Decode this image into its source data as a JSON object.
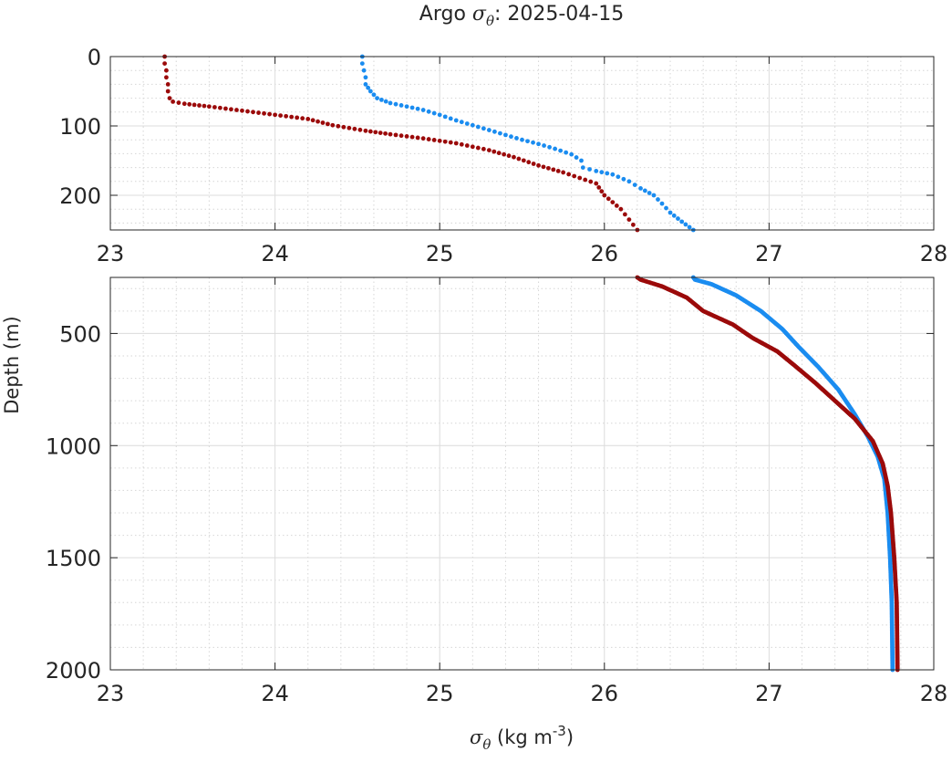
{
  "chart_data": {
    "type": "scatter",
    "title": {
      "prefix": "Argo ",
      "symbol": "σ",
      "subscript": "θ",
      "suffix": ": 2025-04-15"
    },
    "xlabel": {
      "symbol": "σ",
      "subscript": "θ",
      "unit_prefix": " (kg m",
      "superscript": "-3",
      "unit_suffix": ")"
    },
    "ylabel": "Depth (m)",
    "grid": true,
    "minor_grid": true,
    "panels": [
      {
        "name": "upper",
        "xlim": [
          23,
          28
        ],
        "ylim": [
          0,
          250
        ],
        "y_reversed": true,
        "xticks": [
          "23",
          "24",
          "25",
          "26",
          "27",
          "28"
        ],
        "yticks": [
          {
            "v": 0,
            "label": "0"
          },
          {
            "v": 100,
            "label": "100"
          },
          {
            "v": 200,
            "label": "200"
          }
        ]
      },
      {
        "name": "lower",
        "xlim": [
          23,
          28
        ],
        "ylim": [
          250,
          2000
        ],
        "y_reversed": true,
        "xticks": [
          "23",
          "24",
          "25",
          "26",
          "27",
          "28"
        ],
        "yticks": [
          {
            "v": 500,
            "label": "500"
          },
          {
            "v": 1000,
            "label": "1000"
          },
          {
            "v": 1500,
            "label": "1500"
          },
          {
            "v": 2000,
            "label": "2000"
          }
        ]
      }
    ],
    "series": [
      {
        "color": "#1a8cf0",
        "points": [
          [
            24.53,
            0
          ],
          [
            24.53,
            10
          ],
          [
            24.54,
            20
          ],
          [
            24.55,
            30
          ],
          [
            24.55,
            40
          ],
          [
            24.58,
            50
          ],
          [
            24.62,
            60
          ],
          [
            24.7,
            67
          ],
          [
            24.8,
            72
          ],
          [
            24.9,
            77
          ],
          [
            25.0,
            84
          ],
          [
            25.1,
            92
          ],
          [
            25.2,
            99
          ],
          [
            25.3,
            106
          ],
          [
            25.4,
            113
          ],
          [
            25.5,
            120
          ],
          [
            25.6,
            126
          ],
          [
            25.7,
            133
          ],
          [
            25.8,
            141
          ],
          [
            25.86,
            150
          ],
          [
            25.87,
            160
          ],
          [
            25.95,
            165
          ],
          [
            26.05,
            170
          ],
          [
            26.15,
            180
          ],
          [
            26.22,
            190
          ],
          [
            26.3,
            200
          ],
          [
            26.35,
            212
          ],
          [
            26.4,
            225
          ],
          [
            26.47,
            238
          ],
          [
            26.54,
            250
          ],
          [
            26.55,
            260
          ],
          [
            26.65,
            280
          ],
          [
            26.8,
            330
          ],
          [
            26.95,
            400
          ],
          [
            27.08,
            480
          ],
          [
            27.18,
            560
          ],
          [
            27.3,
            650
          ],
          [
            27.42,
            750
          ],
          [
            27.52,
            860
          ],
          [
            27.6,
            960
          ],
          [
            27.66,
            1050
          ],
          [
            27.7,
            1150
          ],
          [
            27.72,
            1300
          ],
          [
            27.735,
            1500
          ],
          [
            27.745,
            1700
          ],
          [
            27.75,
            2000
          ]
        ]
      },
      {
        "color": "#9b0a0a",
        "points": [
          [
            23.33,
            0
          ],
          [
            23.33,
            10
          ],
          [
            23.34,
            20
          ],
          [
            23.34,
            30
          ],
          [
            23.35,
            40
          ],
          [
            23.35,
            50
          ],
          [
            23.36,
            60
          ],
          [
            23.38,
            65
          ],
          [
            23.45,
            68
          ],
          [
            23.6,
            72
          ],
          [
            23.8,
            78
          ],
          [
            24.0,
            84
          ],
          [
            24.2,
            90
          ],
          [
            24.35,
            99
          ],
          [
            24.55,
            107
          ],
          [
            24.7,
            112
          ],
          [
            24.9,
            118
          ],
          [
            25.1,
            125
          ],
          [
            25.3,
            135
          ],
          [
            25.45,
            145
          ],
          [
            25.6,
            157
          ],
          [
            25.75,
            167
          ],
          [
            25.85,
            175
          ],
          [
            25.95,
            183
          ],
          [
            26.0,
            200
          ],
          [
            26.05,
            210
          ],
          [
            26.1,
            220
          ],
          [
            26.15,
            235
          ],
          [
            26.2,
            250
          ],
          [
            26.22,
            260
          ],
          [
            26.35,
            290
          ],
          [
            26.5,
            340
          ],
          [
            26.6,
            400
          ],
          [
            26.78,
            460
          ],
          [
            26.9,
            520
          ],
          [
            27.05,
            580
          ],
          [
            27.15,
            640
          ],
          [
            27.28,
            720
          ],
          [
            27.4,
            800
          ],
          [
            27.52,
            880
          ],
          [
            27.63,
            980
          ],
          [
            27.69,
            1080
          ],
          [
            27.72,
            1180
          ],
          [
            27.74,
            1300
          ],
          [
            27.76,
            1500
          ],
          [
            27.775,
            1700
          ],
          [
            27.78,
            2000
          ]
        ]
      }
    ]
  }
}
